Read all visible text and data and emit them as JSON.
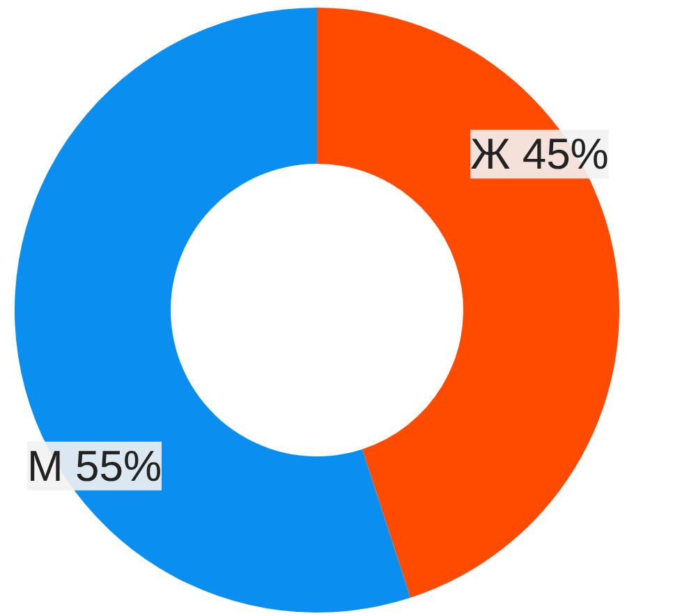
{
  "chart_data": {
    "type": "donut",
    "categories": [
      "Ж",
      "М"
    ],
    "values": [
      45,
      55
    ],
    "colors": [
      "#ff4b00",
      "#0a8ef0"
    ],
    "value_labels": [
      "45%",
      "55%"
    ]
  }
}
